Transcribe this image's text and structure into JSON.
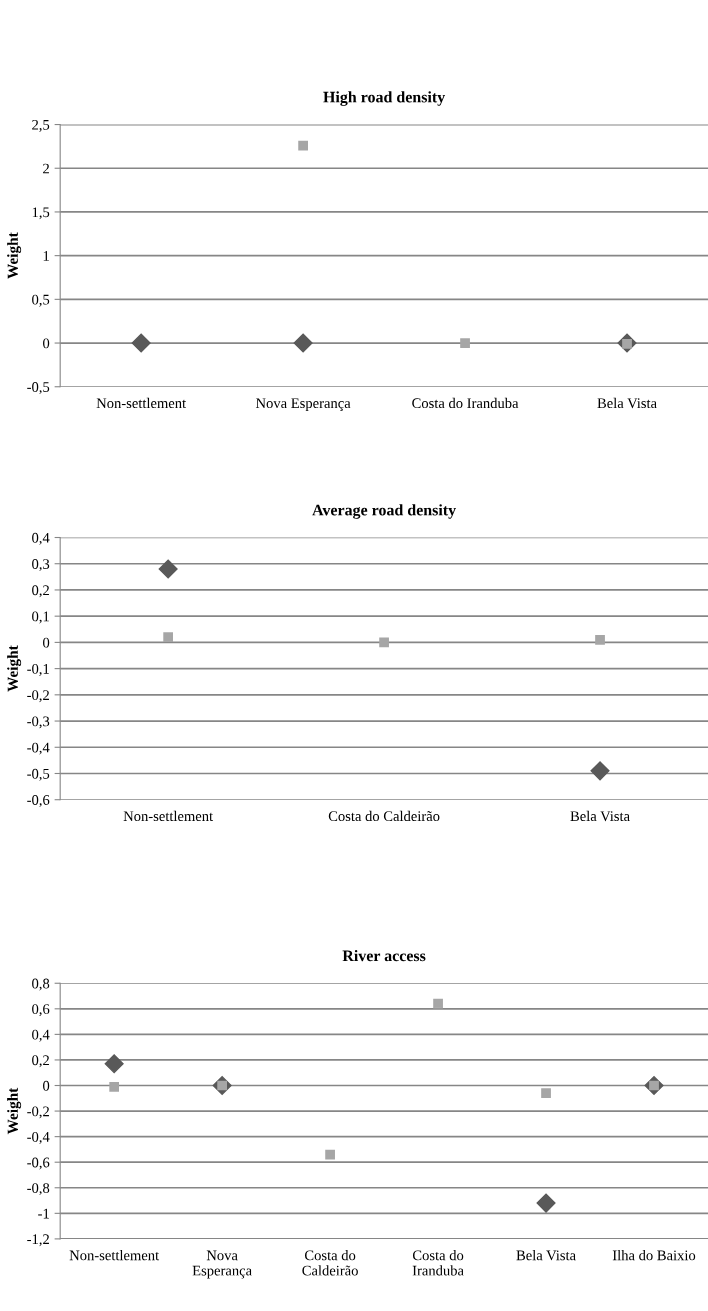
{
  "chart_data": [
    {
      "type": "scatter",
      "title": "High road density",
      "ylabel": "Weight",
      "categories": [
        "Non-settlement",
        "Nova Esperança",
        "Costa do Iranduba",
        "Bela Vista"
      ],
      "series": [
        {
          "color": "#595959",
          "marker": "diamond",
          "values": [
            0,
            0,
            null,
            0
          ]
        },
        {
          "color": "#a6a6a6",
          "marker": "square",
          "values": [
            null,
            2.26,
            0,
            -0.01
          ]
        }
      ],
      "ylim": [
        -0.5,
        2.5
      ],
      "yticks": [
        {
          "value": -0.5,
          "label": "-0,5"
        },
        0,
        {
          "value": 0.5,
          "label": "0,5"
        },
        1,
        {
          "value": 1.5,
          "label": "1,5"
        },
        2,
        {
          "value": 2.5,
          "label": "2,5"
        }
      ],
      "grid": "y",
      "legend": false
    },
    {
      "type": "scatter",
      "title": "Average road density",
      "ylabel": "Weight",
      "categories": [
        "Non-settlement",
        "Costa do Caldeirão",
        "Bela Vista"
      ],
      "series": [
        {
          "color": "#595959",
          "marker": "diamond",
          "values": [
            0.28,
            null,
            -0.49
          ]
        },
        {
          "color": "#a6a6a6",
          "marker": "square",
          "values": [
            0.02,
            0,
            0.01
          ]
        }
      ],
      "ylim": [
        -0.6,
        0.4
      ],
      "yticks": [
        {
          "value": -0.6,
          "label": "-0,6"
        },
        {
          "value": -0.5,
          "label": "-0,5"
        },
        {
          "value": -0.4,
          "label": "-0,4"
        },
        {
          "value": -0.3,
          "label": "-0,3"
        },
        {
          "value": -0.2,
          "label": "-0,2"
        },
        {
          "value": -0.1,
          "label": "-0,1"
        },
        0,
        {
          "value": 0.1,
          "label": "0,1"
        },
        {
          "value": 0.2,
          "label": "0,2"
        },
        {
          "value": 0.3,
          "label": "0,3"
        },
        {
          "value": 0.4,
          "label": "0,4"
        }
      ],
      "grid": "y",
      "legend": false
    },
    {
      "type": "scatter",
      "title": "River access",
      "ylabel": "Weight",
      "categories": [
        "Non-settlement",
        "Nova\nEsperança",
        "Costa do\nCaldeirão",
        "Costa do\nIranduba",
        "Bela Vista",
        "Ilha do Baixio"
      ],
      "series": [
        {
          "color": "#595959",
          "marker": "diamond",
          "values": [
            0.17,
            0,
            null,
            null,
            -0.92,
            0
          ]
        },
        {
          "color": "#a6a6a6",
          "marker": "square",
          "values": [
            -0.01,
            0,
            -0.54,
            0.64,
            -0.06,
            0
          ]
        }
      ],
      "ylim": [
        -1.2,
        0.8
      ],
      "yticks": [
        {
          "value": -1.2,
          "label": "-1,2"
        },
        -1,
        {
          "value": -0.8,
          "label": "-0,8"
        },
        {
          "value": -0.6,
          "label": "-0,6"
        },
        {
          "value": -0.4,
          "label": "-0,4"
        },
        {
          "value": -0.2,
          "label": "-0,2"
        },
        0,
        {
          "value": 0.2,
          "label": "0,2"
        },
        {
          "value": 0.4,
          "label": "0,4"
        },
        {
          "value": 0.6,
          "label": "0,6"
        },
        {
          "value": 0.8,
          "label": "0,8"
        }
      ],
      "grid": "y",
      "legend": false
    }
  ]
}
